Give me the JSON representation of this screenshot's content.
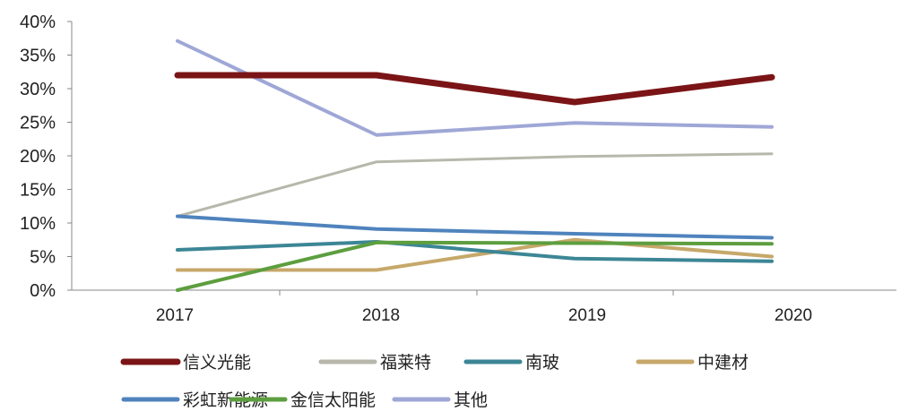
{
  "chart_data": {
    "type": "line",
    "categories": [
      "2017",
      "2018",
      "2019",
      "2020"
    ],
    "ylim": [
      0,
      40
    ],
    "yticks": [
      "0%",
      "5%",
      "10%",
      "15%",
      "20%",
      "25%",
      "30%",
      "35%",
      "40%"
    ],
    "grid": false,
    "legend": "bottom",
    "series": [
      {
        "name": "信义光能",
        "color": "#7b1416",
        "width": 7,
        "values": [
          32,
          32,
          28,
          31.7
        ]
      },
      {
        "name": "福莱特",
        "color": "#b7b8ab",
        "width": 3,
        "values": [
          11,
          19.1,
          19.9,
          20.3
        ]
      },
      {
        "name": "南玻",
        "color": "#3c8696",
        "width": 4,
        "values": [
          6,
          7.2,
          4.7,
          4.3
        ]
      },
      {
        "name": "中建材",
        "color": "#c6a86a",
        "width": 4,
        "values": [
          3,
          3,
          7.5,
          5
        ]
      },
      {
        "name": "彩虹新能源",
        "color": "#4f83bd",
        "width": 4,
        "values": [
          11,
          9.1,
          8.4,
          7.8
        ]
      },
      {
        "name": "金信太阳能",
        "color": "#5d9e3f",
        "width": 4,
        "values": [
          0,
          7.1,
          7,
          6.9
        ]
      },
      {
        "name": "其他",
        "color": "#9fa7d6",
        "width": 4,
        "values": [
          37.1,
          23.1,
          24.9,
          24.3
        ]
      }
    ]
  }
}
